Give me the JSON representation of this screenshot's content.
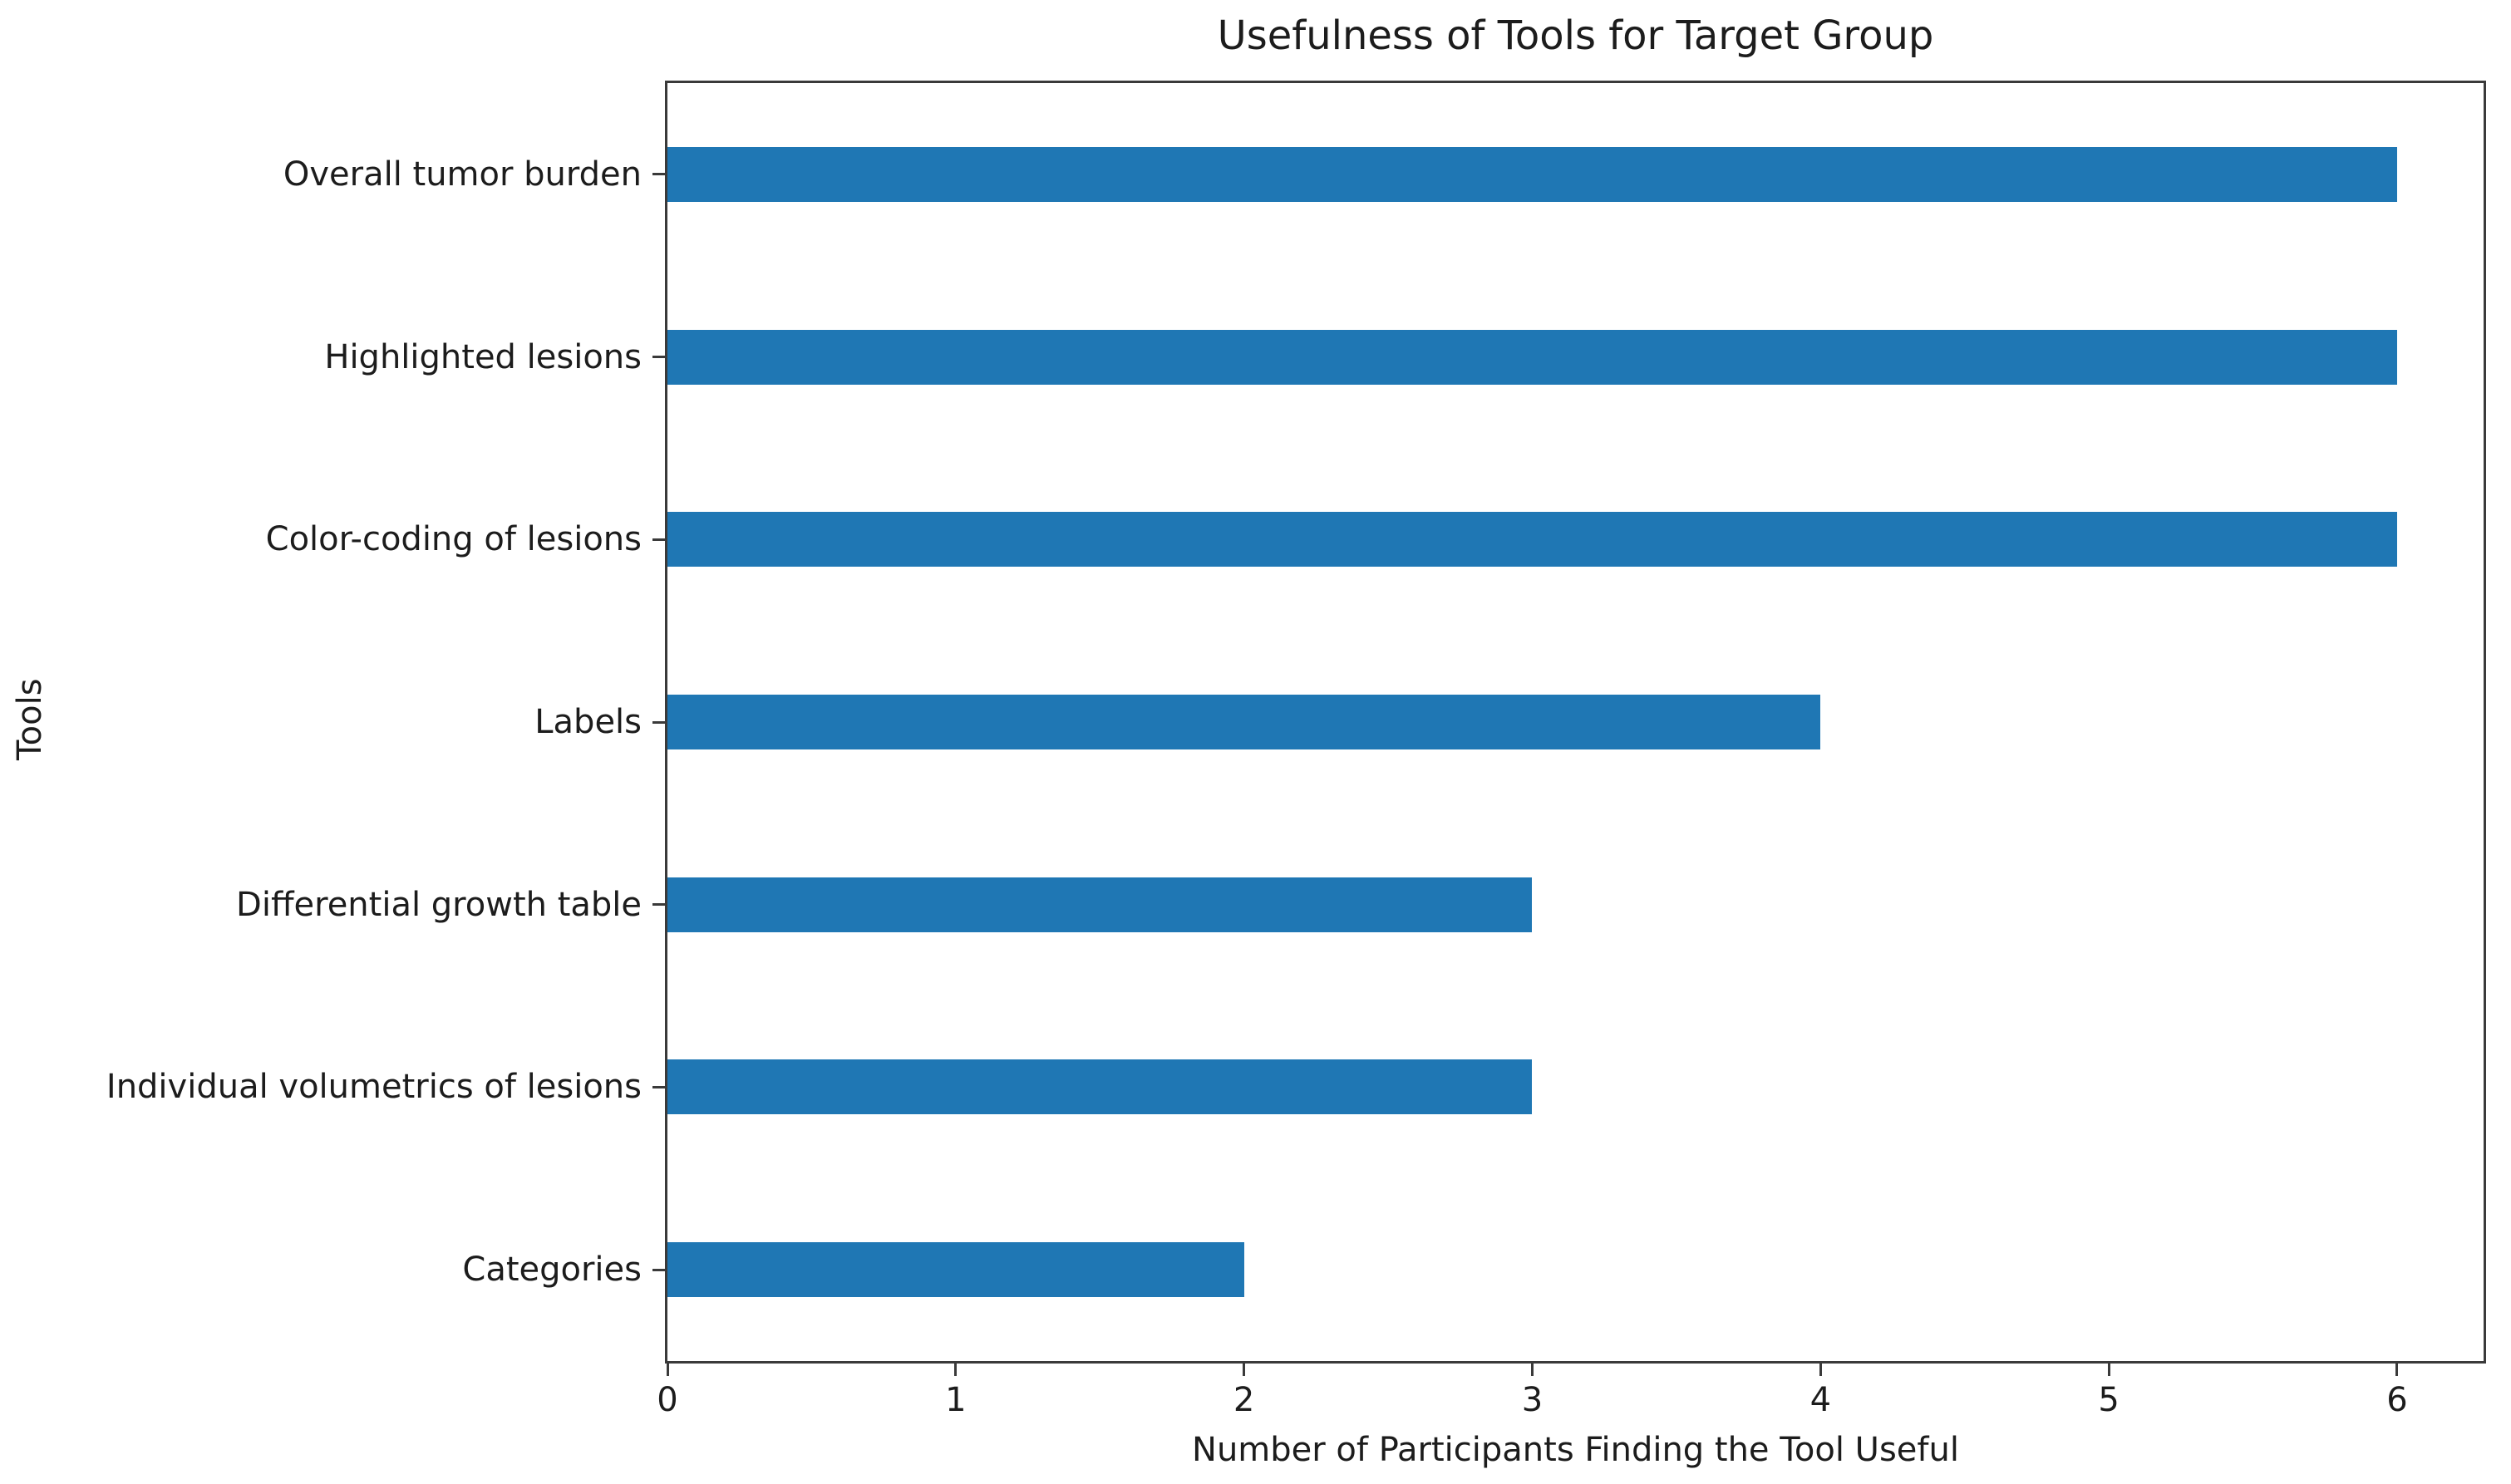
{
  "chart_data": {
    "type": "bar",
    "orientation": "horizontal",
    "title": "Usefulness of Tools for Target Group",
    "xlabel": "Number of Participants Finding the Tool Useful",
    "ylabel": "Tools",
    "categories": [
      "Overall tumor burden",
      "Highlighted lesions",
      "Color-coding of lesions",
      "Labels",
      "Differential growth table",
      "Individual volumetrics of lesions",
      "Categories"
    ],
    "values": [
      6,
      6,
      6,
      4,
      3,
      3,
      2
    ],
    "xticks": [
      "0",
      "1",
      "2",
      "3",
      "4",
      "5",
      "6"
    ],
    "xtick_values": [
      0,
      1,
      2,
      3,
      4,
      5,
      6
    ],
    "xlim": [
      0,
      6.3
    ],
    "grid": false,
    "legend_position": "none",
    "bar_color": "#1f77b4",
    "axis_color": "#3a3a3a",
    "text_color": "#1c1c1c"
  }
}
